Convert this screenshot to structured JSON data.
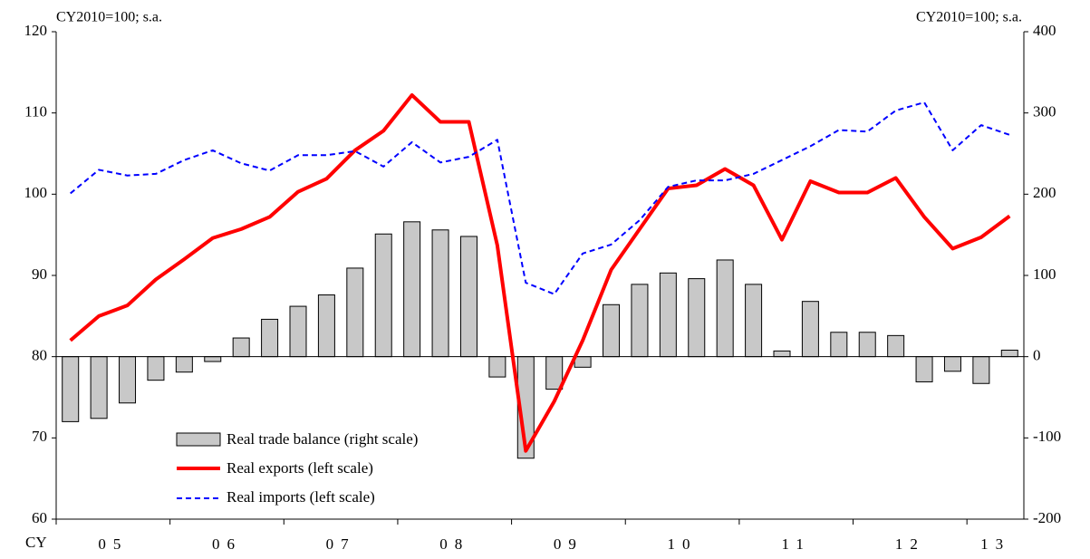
{
  "chart_data": {
    "type": "bar_line",
    "left_unit": "CY2010=100; s.a.",
    "right_unit": "CY2010=100; s.a.",
    "x_prefix": "CY",
    "categories": [
      "05",
      null,
      null,
      null,
      "06",
      null,
      null,
      null,
      "07",
      null,
      null,
      null,
      "08",
      null,
      null,
      null,
      "09",
      null,
      null,
      null,
      "10",
      null,
      null,
      null,
      "11",
      null,
      null,
      null,
      "12",
      null,
      null,
      null,
      "13",
      null
    ],
    "ylim": [
      60,
      120
    ],
    "yticks": [
      60,
      70,
      80,
      90,
      100,
      110,
      120
    ],
    "y2lim": [
      -200,
      400
    ],
    "y2ticks": [
      -200,
      -100,
      0,
      100,
      200,
      300,
      400
    ],
    "series": [
      {
        "name": "Real trade balance (right scale)",
        "kind": "bar",
        "axis": "y2",
        "color": "#c8c8c8",
        "values": [
          -80,
          -76,
          -57,
          -29,
          -19,
          -6,
          23,
          46,
          62,
          76,
          109,
          151,
          166,
          156,
          148,
          -25,
          -125,
          -40,
          -13,
          64,
          89,
          103,
          96,
          119,
          89,
          7,
          68,
          30,
          30,
          26,
          -31,
          -18,
          -33,
          8
        ]
      },
      {
        "name": "Real exports (left scale)",
        "kind": "line",
        "color": "#ff0000",
        "values": [
          82.0,
          85.0,
          86.3,
          89.5,
          92.0,
          94.6,
          95.7,
          97.2,
          100.3,
          101.9,
          105.4,
          107.8,
          112.2,
          108.9,
          108.9,
          93.7,
          68.4,
          74.5,
          82.0,
          90.7,
          95.7,
          100.7,
          101.1,
          103.1,
          101.1,
          94.4,
          101.6,
          100.2,
          100.2,
          102.0,
          97.2,
          93.3,
          94.7,
          97.3
        ]
      },
      {
        "name": "Real imports (left scale)",
        "kind": "dashed",
        "color": "#0000ff",
        "values": [
          100.1,
          103.0,
          102.3,
          102.5,
          104.2,
          105.4,
          103.8,
          102.9,
          104.8,
          104.8,
          105.3,
          103.4,
          106.4,
          103.9,
          104.6,
          106.7,
          89.1,
          87.7,
          92.7,
          93.8,
          96.8,
          100.9,
          101.7,
          101.7,
          102.5,
          104.2,
          105.9,
          107.9,
          107.7,
          110.3,
          111.3,
          105.4,
          108.5,
          107.3
        ]
      }
    ]
  }
}
